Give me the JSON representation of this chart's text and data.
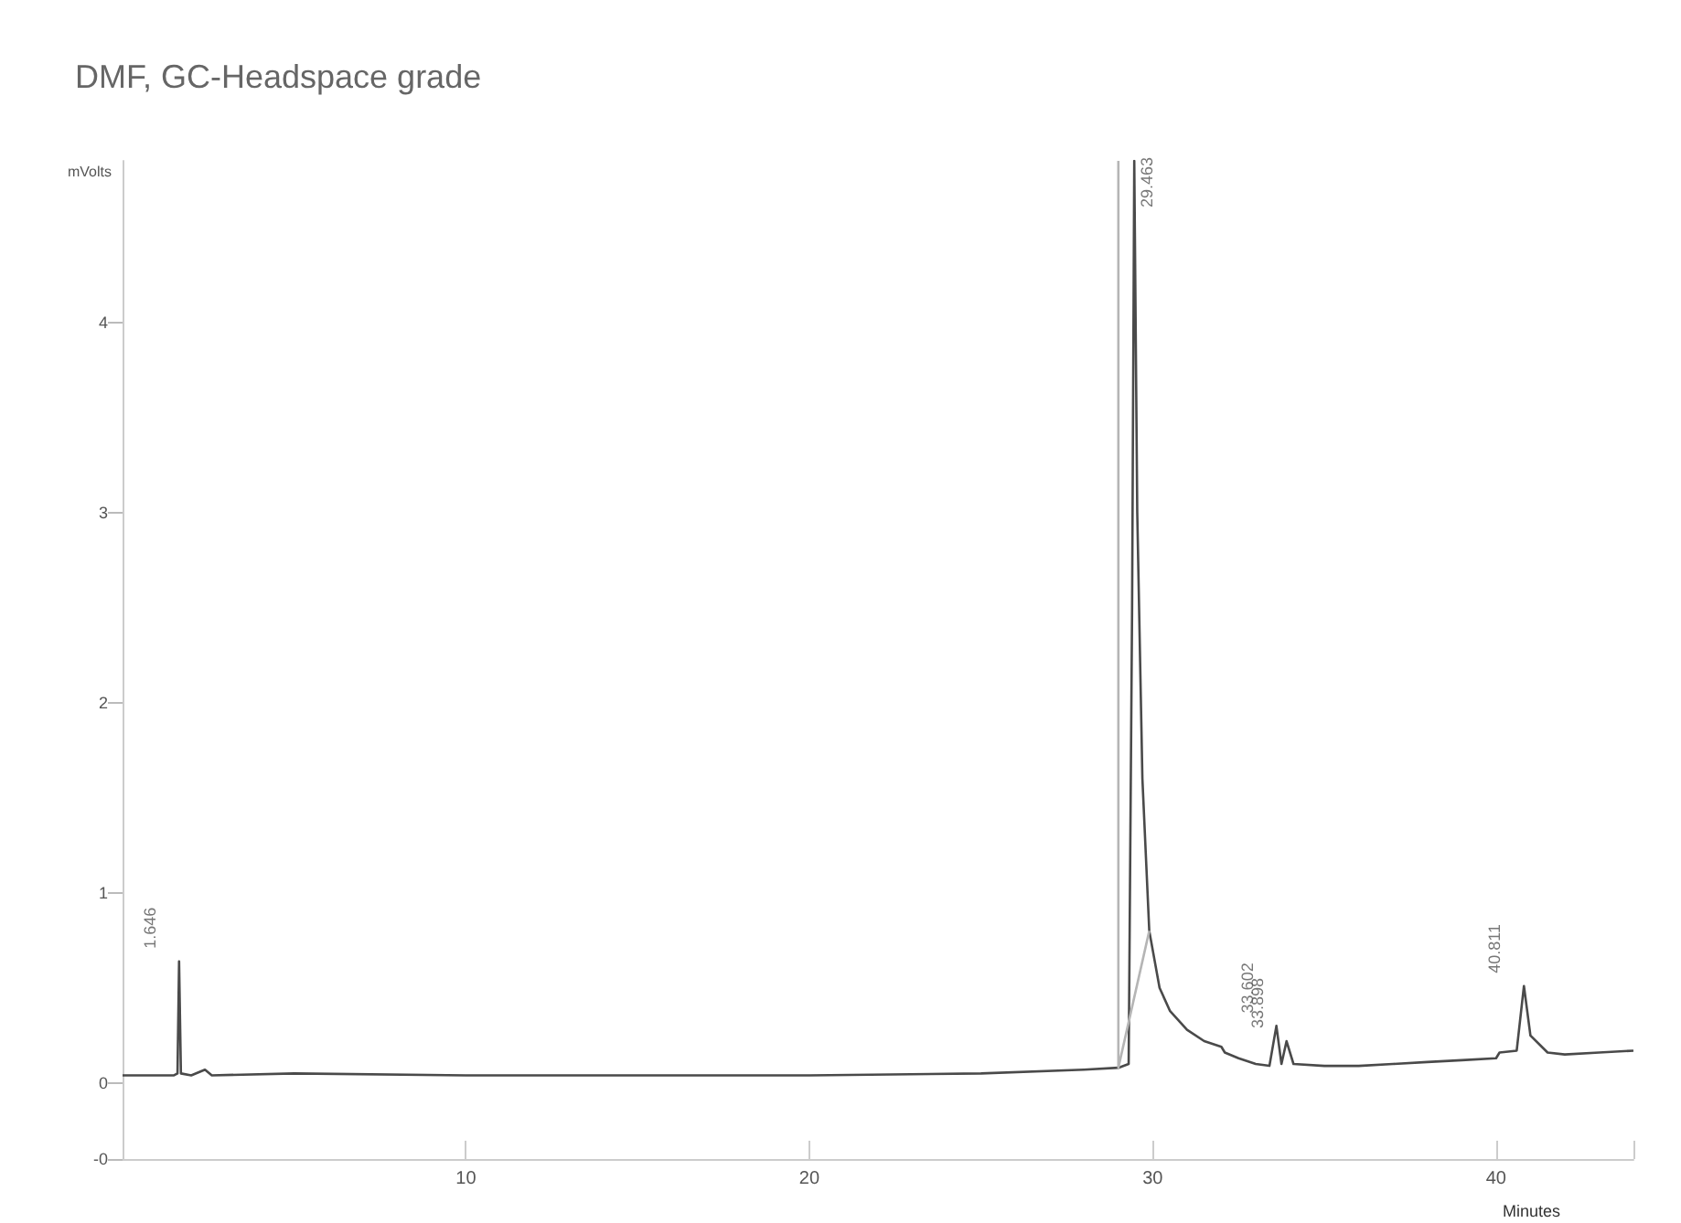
{
  "chart_data": {
    "type": "line",
    "title": "DMF, GC-Headspace grade",
    "xlabel": "Minutes",
    "ylabel": "mVolts",
    "xlim": [
      0,
      44
    ],
    "xticks": [
      10,
      20,
      30,
      40,
      {
        "value": 44,
        "label": null
      }
    ],
    "ylim": [
      -0.4,
      4.85
    ],
    "yticks": [
      {
        "value": -0.4,
        "label": "-0"
      },
      0,
      1,
      2,
      3,
      4
    ],
    "grid": false,
    "marker": "none",
    "line_style": "solid",
    "series": [
      {
        "color": "#4a4a4a",
        "x": [
          0,
          1.5,
          1.6,
          1.646,
          1.7,
          2.0,
          2.4,
          2.6,
          5,
          10,
          15,
          20,
          25,
          28,
          29.0,
          29.3,
          29.4,
          29.463,
          29.55,
          29.7,
          29.9,
          30.2,
          30.5,
          31,
          31.5,
          32,
          32.1,
          32.5,
          33,
          33.4,
          33.602,
          33.75,
          33.898,
          34.1,
          35,
          36,
          37,
          38,
          39,
          40,
          40.1,
          40.6,
          40.811,
          41.0,
          41.5,
          42,
          43,
          44
        ],
        "values": [
          0.04,
          0.04,
          0.05,
          0.64,
          0.05,
          0.04,
          0.07,
          0.04,
          0.05,
          0.04,
          0.04,
          0.04,
          0.05,
          0.07,
          0.08,
          0.1,
          2.5,
          4.85,
          3.0,
          1.6,
          0.8,
          0.5,
          0.38,
          0.28,
          0.22,
          0.19,
          0.16,
          0.13,
          0.1,
          0.09,
          0.3,
          0.1,
          0.22,
          0.1,
          0.09,
          0.09,
          0.1,
          0.11,
          0.12,
          0.13,
          0.16,
          0.17,
          0.51,
          0.25,
          0.16,
          0.15,
          0.16,
          0.17
        ]
      },
      {
        "color": "#b5b5b5",
        "x": [
          29.0,
          29.0,
          29.9
        ],
        "values": [
          4.85,
          0.08,
          0.8
        ]
      }
    ],
    "annotations": [
      {
        "text": "1.646",
        "x": 1.646,
        "y": 0.64
      },
      {
        "text": "29.463",
        "x": 29.463,
        "y": 4.85
      },
      {
        "text": "33.602",
        "x": 33.602,
        "y": 0.3
      },
      {
        "text": "33.898",
        "x": 33.898,
        "y": 0.22
      },
      {
        "text": "40.811",
        "x": 40.811,
        "y": 0.51
      }
    ]
  }
}
